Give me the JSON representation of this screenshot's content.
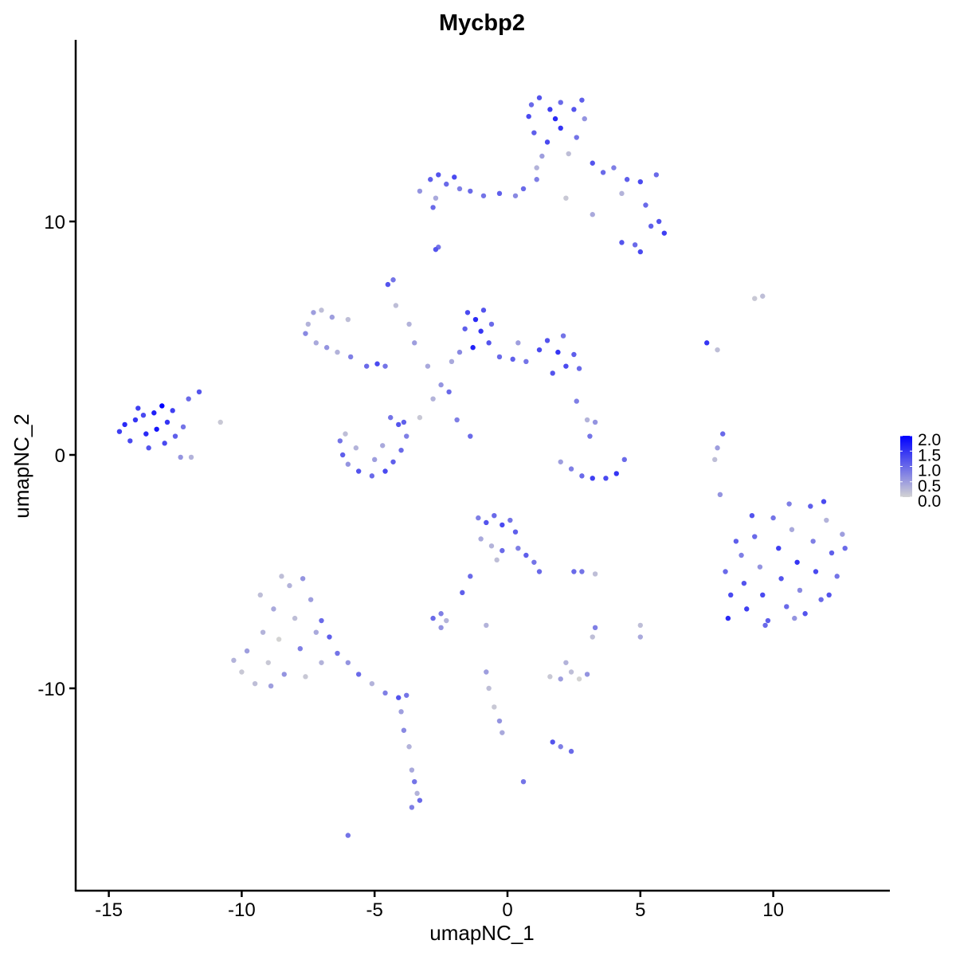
{
  "chart_data": {
    "type": "scatter",
    "title": "Mycbp2",
    "xlabel": "umapNC_1",
    "ylabel": "umapNC_2",
    "xlim": [
      -16.3,
      14.3
    ],
    "ylim": [
      -18.8,
      17.9
    ],
    "xticks": [
      -15,
      -10,
      -5,
      0,
      5,
      10
    ],
    "yticks": [
      -10,
      0,
      10
    ],
    "xtick_labels": [
      "-15",
      "-10",
      "-5",
      "0",
      "5",
      "10"
    ],
    "ytick_labels": [
      "-10",
      "0",
      "10"
    ],
    "grid": false,
    "legend": {
      "placement": "right",
      "type": "colorbar",
      "min": 0,
      "max": 2.0,
      "labels": [
        "2.0",
        "1.5",
        "1.0",
        "0.5",
        "0.0"
      ],
      "low_color": "#d3d3d3",
      "high_color": "#0000ff"
    },
    "point_format": [
      "x",
      "y",
      "expression"
    ],
    "points": [
      [
        -14.6,
        1.0,
        1.4
      ],
      [
        -14.2,
        0.6,
        1.3
      ],
      [
        -14.0,
        1.5,
        1.5
      ],
      [
        -13.6,
        0.9,
        1.6
      ],
      [
        -13.3,
        1.8,
        1.7
      ],
      [
        -13.0,
        2.1,
        2.0
      ],
      [
        -12.8,
        1.4,
        1.5
      ],
      [
        -13.5,
        0.3,
        1.2
      ],
      [
        -12.5,
        0.8,
        1.1
      ],
      [
        -12.2,
        1.2,
        0.9
      ],
      [
        -13.9,
        2.0,
        1.4
      ],
      [
        -14.4,
        1.3,
        1.6
      ],
      [
        -12.9,
        0.5,
        1.3
      ],
      [
        -12.3,
        -0.1,
        0.6
      ],
      [
        -11.9,
        -0.1,
        0.3
      ],
      [
        -11.6,
        2.7,
        1.2
      ],
      [
        -12.0,
        2.4,
        1.0
      ],
      [
        -13.2,
        1.1,
        1.8
      ],
      [
        -13.7,
        1.7,
        1.3
      ],
      [
        -12.6,
        1.9,
        1.4
      ],
      [
        -10.8,
        1.4,
        0.1
      ],
      [
        0.8,
        14.5,
        1.3
      ],
      [
        1.2,
        15.3,
        1.2
      ],
      [
        1.6,
        14.8,
        1.4
      ],
      [
        2.0,
        15.1,
        1.0
      ],
      [
        2.5,
        14.8,
        1.2
      ],
      [
        2.9,
        14.4,
        0.6
      ],
      [
        1.0,
        13.8,
        1.1
      ],
      [
        1.5,
        13.4,
        1.3
      ],
      [
        2.0,
        14.0,
        1.5
      ],
      [
        2.6,
        13.6,
        0.9
      ],
      [
        1.3,
        12.8,
        0.5
      ],
      [
        2.3,
        12.9,
        0.2
      ],
      [
        1.8,
        14.4,
        1.6
      ],
      [
        0.9,
        15.0,
        1.0
      ],
      [
        2.8,
        15.2,
        1.1
      ],
      [
        1.1,
        12.3,
        0.3
      ],
      [
        3.2,
        12.5,
        1.2
      ],
      [
        3.6,
        12.1,
        1.0
      ],
      [
        4.0,
        12.3,
        0.8
      ],
      [
        4.5,
        11.8,
        1.1
      ],
      [
        5.0,
        11.7,
        1.3
      ],
      [
        5.6,
        12.0,
        1.0
      ],
      [
        4.3,
        11.2,
        0.3
      ],
      [
        5.2,
        10.7,
        1.0
      ],
      [
        5.7,
        10.0,
        1.2
      ],
      [
        5.9,
        9.5,
        1.4
      ],
      [
        5.4,
        9.8,
        1.1
      ],
      [
        4.3,
        9.1,
        1.2
      ],
      [
        4.8,
        9.0,
        1.0
      ],
      [
        5.0,
        8.7,
        1.3
      ],
      [
        3.2,
        10.3,
        0.4
      ],
      [
        2.2,
        11.0,
        0.1
      ],
      [
        1.1,
        11.8,
        0.8
      ],
      [
        -3.3,
        11.3,
        0.6
      ],
      [
        -2.9,
        11.8,
        1.1
      ],
      [
        -2.6,
        12.0,
        1.2
      ],
      [
        -2.3,
        11.6,
        1.0
      ],
      [
        -2.0,
        11.9,
        1.3
      ],
      [
        -1.8,
        11.4,
        0.8
      ],
      [
        -2.7,
        11.0,
        0.4
      ],
      [
        -2.8,
        10.6,
        1.0
      ],
      [
        -1.4,
        11.3,
        1.0
      ],
      [
        -0.9,
        11.1,
        0.9
      ],
      [
        -0.3,
        11.2,
        1.1
      ],
      [
        0.3,
        11.1,
        0.7
      ],
      [
        0.6,
        11.4,
        1.0
      ],
      [
        -2.7,
        8.8,
        1.2
      ],
      [
        -2.6,
        8.9,
        0.9
      ],
      [
        -7.5,
        5.6,
        0.3
      ],
      [
        -7.3,
        6.1,
        0.5
      ],
      [
        -7.0,
        6.2,
        0.2
      ],
      [
        -7.6,
        5.2,
        0.7
      ],
      [
        -7.2,
        4.8,
        0.4
      ],
      [
        -6.8,
        4.6,
        0.6
      ],
      [
        -6.4,
        4.4,
        0.3
      ],
      [
        -6.0,
        5.8,
        0.2
      ],
      [
        -6.6,
        5.9,
        0.5
      ],
      [
        -5.9,
        4.2,
        0.8
      ],
      [
        -5.3,
        3.8,
        1.0
      ],
      [
        -4.9,
        3.9,
        1.3
      ],
      [
        -4.6,
        3.8,
        0.9
      ],
      [
        -4.5,
        7.3,
        1.2
      ],
      [
        -4.3,
        7.5,
        0.9
      ],
      [
        -4.2,
        6.4,
        0.2
      ],
      [
        -3.7,
        5.6,
        0.3
      ],
      [
        -3.5,
        4.8,
        0.5
      ],
      [
        -3.0,
        3.8,
        0.4
      ],
      [
        -2.5,
        3.0,
        0.6
      ],
      [
        -2.8,
        2.4,
        0.3
      ],
      [
        -3.3,
        1.6,
        0.1
      ],
      [
        -2.2,
        2.7,
        1.0
      ],
      [
        -1.9,
        1.5,
        0.8
      ],
      [
        -1.4,
        0.8,
        1.0
      ],
      [
        -1.5,
        6.1,
        1.3
      ],
      [
        -1.2,
        5.8,
        1.6
      ],
      [
        -0.9,
        6.2,
        1.2
      ],
      [
        -1.6,
        5.4,
        1.1
      ],
      [
        -1.0,
        5.3,
        1.5
      ],
      [
        -0.6,
        5.6,
        1.0
      ],
      [
        -1.3,
        4.6,
        1.7
      ],
      [
        -0.7,
        4.8,
        1.2
      ],
      [
        -1.8,
        4.4,
        0.7
      ],
      [
        -2.1,
        4.0,
        0.4
      ],
      [
        -0.3,
        4.2,
        1.0
      ],
      [
        0.2,
        4.1,
        1.1
      ],
      [
        0.7,
        4.0,
        0.9
      ],
      [
        1.2,
        4.5,
        1.3
      ],
      [
        1.5,
        4.9,
        1.2
      ],
      [
        1.9,
        4.4,
        1.5
      ],
      [
        2.2,
        3.8,
        1.3
      ],
      [
        2.5,
        4.3,
        1.1
      ],
      [
        2.7,
        3.7,
        1.0
      ],
      [
        1.7,
        3.5,
        1.2
      ],
      [
        2.1,
        5.1,
        0.9
      ],
      [
        0.4,
        4.8,
        0.5
      ],
      [
        -6.3,
        0.6,
        0.9
      ],
      [
        -6.2,
        0.0,
        1.1
      ],
      [
        -6.0,
        -0.4,
        0.6
      ],
      [
        -5.6,
        -0.7,
        1.2
      ],
      [
        -5.1,
        -0.9,
        1.0
      ],
      [
        -4.6,
        -0.7,
        1.3
      ],
      [
        -4.3,
        -0.3,
        1.1
      ],
      [
        -4.0,
        0.2,
        1.0
      ],
      [
        -3.8,
        0.8,
        0.8
      ],
      [
        -4.1,
        1.3,
        1.2
      ],
      [
        -4.4,
        1.6,
        0.9
      ],
      [
        -5.7,
        0.3,
        0.3
      ],
      [
        -5.0,
        -0.2,
        0.5
      ],
      [
        -4.7,
        0.4,
        0.4
      ],
      [
        -6.1,
        0.9,
        0.2
      ],
      [
        -3.9,
        1.4,
        1.1
      ],
      [
        2.0,
        -0.3,
        0.5
      ],
      [
        2.4,
        -0.6,
        0.8
      ],
      [
        2.8,
        -0.9,
        1.0
      ],
      [
        3.2,
        -1.0,
        1.4
      ],
      [
        3.7,
        -1.0,
        1.3
      ],
      [
        4.1,
        -0.8,
        1.5
      ],
      [
        4.4,
        -0.2,
        1.0
      ],
      [
        3.1,
        0.8,
        0.9
      ],
      [
        3.3,
        1.4,
        0.6
      ],
      [
        3.0,
        1.5,
        0.3
      ],
      [
        2.6,
        2.3,
        0.8
      ],
      [
        7.5,
        4.8,
        1.5
      ],
      [
        7.9,
        4.5,
        0.2
      ],
      [
        9.3,
        6.7,
        0.1
      ],
      [
        9.6,
        6.8,
        0.2
      ],
      [
        8.1,
        0.9,
        1.0
      ],
      [
        7.8,
        -0.2,
        0.2
      ],
      [
        7.9,
        0.3,
        0.5
      ],
      [
        8.0,
        -1.7,
        0.6
      ],
      [
        8.2,
        -5.0,
        1.0
      ],
      [
        8.4,
        -6.0,
        1.3
      ],
      [
        8.3,
        -7.0,
        1.6
      ],
      [
        8.8,
        -4.3,
        0.8
      ],
      [
        8.9,
        -5.5,
        1.2
      ],
      [
        9.0,
        -6.6,
        1.4
      ],
      [
        9.3,
        -3.5,
        1.0
      ],
      [
        9.5,
        -4.8,
        0.6
      ],
      [
        9.6,
        -6.0,
        1.3
      ],
      [
        9.8,
        -7.1,
        1.1
      ],
      [
        10.0,
        -2.7,
        0.9
      ],
      [
        10.2,
        -4.0,
        1.4
      ],
      [
        10.3,
        -5.3,
        1.2
      ],
      [
        10.5,
        -6.5,
        1.0
      ],
      [
        10.7,
        -3.2,
        0.4
      ],
      [
        10.9,
        -4.6,
        1.5
      ],
      [
        11.0,
        -5.8,
        0.7
      ],
      [
        11.2,
        -6.8,
        1.2
      ],
      [
        11.4,
        -2.2,
        1.1
      ],
      [
        11.5,
        -3.7,
        0.8
      ],
      [
        11.6,
        -5.0,
        1.3
      ],
      [
        11.8,
        -6.2,
        1.0
      ],
      [
        12.0,
        -2.8,
        0.3
      ],
      [
        12.2,
        -4.2,
        1.1
      ],
      [
        12.4,
        -5.2,
        0.9
      ],
      [
        12.6,
        -3.4,
        0.5
      ],
      [
        12.7,
        -4.0,
        1.0
      ],
      [
        9.2,
        -2.6,
        1.2
      ],
      [
        10.6,
        -2.1,
        0.8
      ],
      [
        11.9,
        -2.0,
        1.3
      ],
      [
        12.1,
        -6.0,
        1.2
      ],
      [
        9.7,
        -7.3,
        1.0
      ],
      [
        10.8,
        -7.0,
        0.6
      ],
      [
        8.6,
        -3.7,
        1.1
      ],
      [
        -1.1,
        -2.7,
        0.8
      ],
      [
        -0.8,
        -2.9,
        1.2
      ],
      [
        -0.5,
        -2.6,
        1.0
      ],
      [
        -0.2,
        -3.0,
        1.3
      ],
      [
        0.1,
        -2.8,
        0.9
      ],
      [
        0.3,
        -3.3,
        1.1
      ],
      [
        -1.0,
        -3.6,
        0.4
      ],
      [
        -0.6,
        -3.9,
        0.3
      ],
      [
        -0.2,
        -4.1,
        1.0
      ],
      [
        0.4,
        -4.0,
        0.8
      ],
      [
        0.7,
        -4.3,
        1.1
      ],
      [
        1.0,
        -4.6,
        0.9
      ],
      [
        1.2,
        -5.0,
        1.0
      ],
      [
        -0.4,
        -4.5,
        0.2
      ],
      [
        -1.4,
        -5.2,
        1.0
      ],
      [
        -1.7,
        -5.9,
        1.1
      ],
      [
        -2.5,
        -6.8,
        0.8
      ],
      [
        -2.8,
        -7.0,
        1.0
      ],
      [
        -2.3,
        -7.1,
        0.3
      ],
      [
        -2.5,
        -7.4,
        0.6
      ],
      [
        2.5,
        -5.0,
        1.0
      ],
      [
        2.8,
        -5.0,
        0.9
      ],
      [
        3.3,
        -5.1,
        0.2
      ],
      [
        -10.3,
        -8.8,
        0.3
      ],
      [
        -10.0,
        -9.3,
        0.1
      ],
      [
        -9.8,
        -8.4,
        0.5
      ],
      [
        -9.5,
        -9.8,
        0.2
      ],
      [
        -9.2,
        -7.6,
        0.3
      ],
      [
        -9.0,
        -8.9,
        0.1
      ],
      [
        -8.8,
        -6.6,
        0.4
      ],
      [
        -8.6,
        -7.9,
        0.0
      ],
      [
        -8.4,
        -9.4,
        0.6
      ],
      [
        -8.2,
        -5.6,
        0.3
      ],
      [
        -8.0,
        -7.0,
        0.2
      ],
      [
        -7.8,
        -8.3,
        0.8
      ],
      [
        -7.6,
        -9.5,
        0.1
      ],
      [
        -7.4,
        -6.2,
        0.5
      ],
      [
        -7.2,
        -7.6,
        0.4
      ],
      [
        -7.0,
        -8.9,
        0.3
      ],
      [
        -8.5,
        -5.2,
        0.2
      ],
      [
        -7.7,
        -5.3,
        0.6
      ],
      [
        -9.3,
        -6.0,
        0.2
      ],
      [
        -8.9,
        -9.9,
        0.5
      ],
      [
        -7.0,
        -7.1,
        1.0
      ],
      [
        -6.7,
        -7.8,
        1.1
      ],
      [
        -6.4,
        -8.5,
        0.9
      ],
      [
        -6.0,
        -8.9,
        0.6
      ],
      [
        -5.6,
        -9.4,
        1.0
      ],
      [
        -5.1,
        -9.8,
        0.3
      ],
      [
        -4.6,
        -10.2,
        0.8
      ],
      [
        -4.1,
        -10.4,
        1.2
      ],
      [
        -3.8,
        -10.3,
        0.9
      ],
      [
        -4.0,
        -11.0,
        0.5
      ],
      [
        -3.9,
        -11.8,
        0.7
      ],
      [
        -3.7,
        -12.5,
        0.3
      ],
      [
        -3.6,
        -13.5,
        0.4
      ],
      [
        -3.5,
        -14.0,
        0.9
      ],
      [
        -3.4,
        -14.5,
        0.3
      ],
      [
        -3.3,
        -14.8,
        1.0
      ],
      [
        -3.6,
        -15.1,
        0.8
      ],
      [
        -6.0,
        -16.3,
        0.9
      ],
      [
        -0.8,
        -9.3,
        0.5
      ],
      [
        -0.7,
        -10.0,
        0.2
      ],
      [
        -0.5,
        -10.8,
        0.1
      ],
      [
        -0.3,
        -11.4,
        0.6
      ],
      [
        -0.2,
        -11.9,
        0.4
      ],
      [
        0.6,
        -14.0,
        0.9
      ],
      [
        -0.8,
        -7.3,
        0.3
      ],
      [
        1.6,
        -9.5,
        0.1
      ],
      [
        2.0,
        -9.6,
        0.5
      ],
      [
        2.4,
        -9.3,
        0.2
      ],
      [
        2.7,
        -9.6,
        0.0
      ],
      [
        3.0,
        -9.4,
        0.6
      ],
      [
        2.2,
        -8.9,
        0.3
      ],
      [
        2.0,
        -12.5,
        0.8
      ],
      [
        2.4,
        -12.7,
        1.0
      ],
      [
        1.7,
        -12.3,
        1.2
      ],
      [
        3.3,
        -7.4,
        0.8
      ],
      [
        3.2,
        -7.8,
        0.2
      ],
      [
        5.0,
        -7.3,
        0.2
      ],
      [
        5.0,
        -7.8,
        0.4
      ]
    ]
  }
}
